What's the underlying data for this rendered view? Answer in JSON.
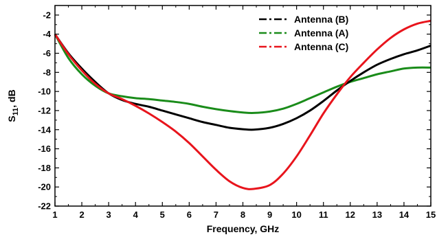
{
  "chart_data": {
    "type": "line",
    "xlabel": "Frequency, GHz",
    "ylabel_main": "S",
    "ylabel_sub": "11",
    "ylabel_suffix": ", dB",
    "xlim": [
      1,
      15
    ],
    "ylim": [
      -22,
      -1
    ],
    "xticks": [
      1,
      2,
      3,
      4,
      5,
      6,
      7,
      8,
      9,
      10,
      11,
      12,
      13,
      14,
      15
    ],
    "yticks": [
      -2,
      -4,
      -6,
      -8,
      -10,
      -12,
      -14,
      -16,
      -18,
      -20,
      -22
    ],
    "grid": false,
    "legend_position": "top-right",
    "series": [
      {
        "name": "Antenna (B)",
        "color": "#000000",
        "x": [
          1,
          1.5,
          2,
          2.5,
          3,
          3.5,
          4,
          4.5,
          5,
          5.5,
          6,
          6.5,
          7,
          7.5,
          8,
          8.4,
          9,
          9.5,
          10,
          10.5,
          11,
          11.5,
          12,
          12.5,
          13,
          13.5,
          14,
          14.5,
          15
        ],
        "y": [
          -4.0,
          -6.0,
          -7.6,
          -9.0,
          -10.2,
          -10.9,
          -11.3,
          -11.6,
          -12.0,
          -12.4,
          -12.8,
          -13.2,
          -13.5,
          -13.8,
          -13.95,
          -14.0,
          -13.8,
          -13.4,
          -12.8,
          -12.0,
          -11.0,
          -9.9,
          -8.9,
          -8.0,
          -7.2,
          -6.6,
          -6.1,
          -5.7,
          -5.2
        ]
      },
      {
        "name": "Antenna (A)",
        "color": "#1a8c1a",
        "x": [
          1,
          1.5,
          2,
          2.5,
          3,
          3.5,
          4,
          4.5,
          5,
          5.5,
          6,
          6.5,
          7,
          7.5,
          8,
          8.4,
          9,
          9.5,
          10,
          10.5,
          11,
          11.5,
          12,
          12.5,
          13,
          13.5,
          14,
          14.5,
          15
        ],
        "y": [
          -4.0,
          -6.5,
          -8.2,
          -9.4,
          -10.2,
          -10.5,
          -10.7,
          -10.8,
          -10.95,
          -11.1,
          -11.3,
          -11.6,
          -11.85,
          -12.05,
          -12.2,
          -12.25,
          -12.1,
          -11.8,
          -11.3,
          -10.7,
          -10.1,
          -9.5,
          -9.0,
          -8.6,
          -8.2,
          -7.9,
          -7.6,
          -7.5,
          -7.5
        ]
      },
      {
        "name": "Antenna (C)",
        "color": "#e8141c",
        "x": [
          1,
          1.5,
          2,
          2.5,
          3,
          3.5,
          4,
          4.5,
          5,
          5.5,
          6,
          6.5,
          7,
          7.5,
          8,
          8.4,
          9,
          9.5,
          10,
          10.5,
          11,
          11.5,
          12,
          12.5,
          13,
          13.5,
          14,
          14.5,
          15
        ],
        "y": [
          -4.0,
          -6.1,
          -7.8,
          -9.2,
          -10.2,
          -10.8,
          -11.5,
          -12.3,
          -13.2,
          -14.2,
          -15.4,
          -16.8,
          -18.2,
          -19.4,
          -20.1,
          -20.2,
          -19.8,
          -18.6,
          -16.8,
          -14.6,
          -12.3,
          -10.3,
          -8.5,
          -7.0,
          -5.6,
          -4.4,
          -3.5,
          -2.9,
          -2.6
        ]
      }
    ]
  }
}
